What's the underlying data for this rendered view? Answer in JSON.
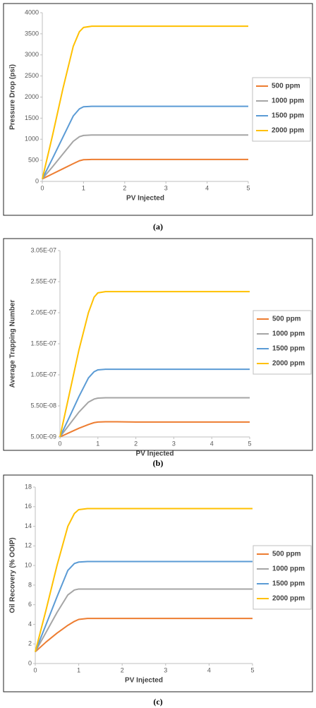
{
  "chart_data": [
    {
      "type": "line",
      "caption": "(a)",
      "x_label": "PV Injected",
      "y_label": "Pressure Drop (psi)",
      "x": [
        0,
        0.25,
        0.5,
        0.75,
        0.9,
        1,
        1.2,
        1.5,
        2,
        3,
        4,
        5
      ],
      "xlim": [
        0,
        5
      ],
      "xticks": [
        0,
        1,
        2,
        3,
        4,
        5
      ],
      "ylim": [
        0,
        4000
      ],
      "yticks": [
        0,
        500,
        1000,
        1500,
        2000,
        2500,
        3000,
        3500,
        4000
      ],
      "legend": "right",
      "series": [
        {
          "name": "500 ppm",
          "color": "#ed7d31",
          "values": [
            60,
            180,
            300,
            420,
            490,
            515,
            520,
            520,
            520,
            520,
            520,
            520
          ]
        },
        {
          "name": "1000 ppm",
          "color": "#a5a5a5",
          "values": [
            60,
            350,
            650,
            950,
            1060,
            1090,
            1100,
            1100,
            1100,
            1100,
            1100,
            1100
          ]
        },
        {
          "name": "1500 ppm",
          "color": "#5b9bd5",
          "values": [
            60,
            550,
            1050,
            1550,
            1720,
            1770,
            1780,
            1780,
            1780,
            1780,
            1780,
            1780
          ]
        },
        {
          "name": "2000 ppm",
          "color": "#ffc000",
          "values": [
            60,
            1100,
            2200,
            3200,
            3550,
            3650,
            3680,
            3680,
            3680,
            3680,
            3680,
            3680
          ]
        }
      ]
    },
    {
      "type": "line",
      "caption": "(b)",
      "x_label": "PV Injected",
      "y_label": "Average Trapping Number",
      "x": [
        0,
        0.25,
        0.5,
        0.75,
        0.9,
        1,
        1.2,
        1.5,
        2,
        3,
        4,
        5
      ],
      "xlim": [
        0,
        5
      ],
      "xticks": [
        0,
        1,
        2,
        3,
        4,
        5
      ],
      "ylim": [
        5e-09,
        3.05e-07
      ],
      "yticks": [
        {
          "value": 5e-09,
          "label": "5.00E-09"
        },
        {
          "value": 5.5e-08,
          "label": "5.50E-08"
        },
        {
          "value": 1.05e-07,
          "label": "1.05E-07"
        },
        {
          "value": 1.55e-07,
          "label": "1.55E-07"
        },
        {
          "value": 2.05e-07,
          "label": "2.05E-07"
        },
        {
          "value": 2.55e-07,
          "label": "2.55E-07"
        },
        {
          "value": 3.05e-07,
          "label": "3.05E-07"
        }
      ],
      "legend": "right",
      "series": [
        {
          "name": "500 ppm",
          "color": "#ed7d31",
          "values": [
            5e-09,
            1.2e-08,
            1.9e-08,
            2.5e-08,
            2.8e-08,
            2.9e-08,
            2.95e-08,
            2.95e-08,
            2.9e-08,
            2.9e-08,
            2.9e-08,
            2.9e-08
          ]
        },
        {
          "name": "1000 ppm",
          "color": "#a5a5a5",
          "values": [
            5e-09,
            2.5e-08,
            4.5e-08,
            6.1e-08,
            6.6e-08,
            6.75e-08,
            6.8e-08,
            6.8e-08,
            6.8e-08,
            6.8e-08,
            6.8e-08,
            6.8e-08
          ]
        },
        {
          "name": "1500 ppm",
          "color": "#5b9bd5",
          "values": [
            5e-09,
            3.7e-08,
            7e-08,
            1e-07,
            1.1e-07,
            1.13e-07,
            1.14e-07,
            1.14e-07,
            1.14e-07,
            1.14e-07,
            1.14e-07,
            1.14e-07
          ]
        },
        {
          "name": "2000 ppm",
          "color": "#ffc000",
          "values": [
            5e-09,
            7.5e-08,
            1.45e-07,
            2.05e-07,
            2.3e-07,
            2.37e-07,
            2.39e-07,
            2.39e-07,
            2.39e-07,
            2.39e-07,
            2.39e-07,
            2.39e-07
          ]
        }
      ]
    },
    {
      "type": "line",
      "caption": "(c)",
      "x_label": "PV Injected",
      "y_label": "Oil Recovery (% OOIP)",
      "x": [
        0,
        0.25,
        0.5,
        0.75,
        0.9,
        1,
        1.2,
        1.5,
        2,
        3,
        4,
        5
      ],
      "xlim": [
        0,
        5
      ],
      "xticks": [
        0,
        1,
        2,
        3,
        4,
        5
      ],
      "ylim": [
        0,
        18
      ],
      "yticks": [
        0,
        2,
        4,
        6,
        8,
        10,
        12,
        14,
        16,
        18
      ],
      "legend": "right",
      "series": [
        {
          "name": "500 ppm",
          "color": "#ed7d31",
          "values": [
            1.2,
            2.2,
            3.1,
            3.9,
            4.3,
            4.5,
            4.6,
            4.6,
            4.6,
            4.6,
            4.6,
            4.6
          ]
        },
        {
          "name": "1000 ppm",
          "color": "#a5a5a5",
          "values": [
            1.2,
            3.2,
            5.2,
            7,
            7.5,
            7.6,
            7.6,
            7.6,
            7.6,
            7.6,
            7.6,
            7.6
          ]
        },
        {
          "name": "1500 ppm",
          "color": "#5b9bd5",
          "values": [
            1.2,
            4,
            6.8,
            9.5,
            10.2,
            10.35,
            10.4,
            10.4,
            10.4,
            10.4,
            10.4,
            10.4
          ]
        },
        {
          "name": "2000 ppm",
          "color": "#ffc000",
          "values": [
            1.2,
            5.5,
            10,
            14,
            15.3,
            15.7,
            15.8,
            15.8,
            15.8,
            15.8,
            15.8,
            15.8
          ]
        }
      ]
    }
  ]
}
